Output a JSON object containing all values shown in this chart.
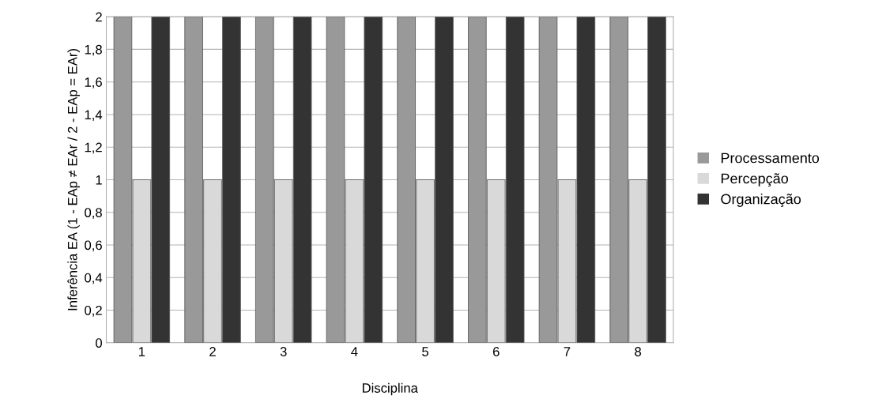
{
  "chart_data": {
    "type": "bar",
    "xlabel": "Disciplina",
    "ylabel": "Inferência EA (1 - EAp ≠ EAr / 2 - EAp = EAr)",
    "categories": [
      "1",
      "2",
      "3",
      "4",
      "5",
      "6",
      "7",
      "8"
    ],
    "series": [
      {
        "name": "Processamento",
        "color": "#999999",
        "values": [
          2,
          2,
          2,
          2,
          2,
          2,
          2,
          2
        ]
      },
      {
        "name": "Percepção",
        "color": "#d9d9d9",
        "values": [
          1,
          1,
          1,
          1,
          1,
          1,
          1,
          1
        ]
      },
      {
        "name": "Organização",
        "color": "#333333",
        "values": [
          2,
          2,
          2,
          2,
          2,
          2,
          2,
          2
        ]
      }
    ],
    "ylim": [
      0,
      2
    ],
    "yticks": [
      0,
      {
        "value": 0.2,
        "label": "0,2"
      },
      {
        "value": 0.4,
        "label": "0,4"
      },
      {
        "value": 0.6,
        "label": "0,6"
      },
      {
        "value": 0.8,
        "label": "0,8"
      },
      1,
      {
        "value": 1.2,
        "label": "1,2"
      },
      {
        "value": 1.4,
        "label": "1,4"
      },
      {
        "value": 1.6,
        "label": "1,6"
      },
      {
        "value": 1.8,
        "label": "1,8"
      },
      2
    ],
    "grid": "y",
    "legend": "right"
  }
}
